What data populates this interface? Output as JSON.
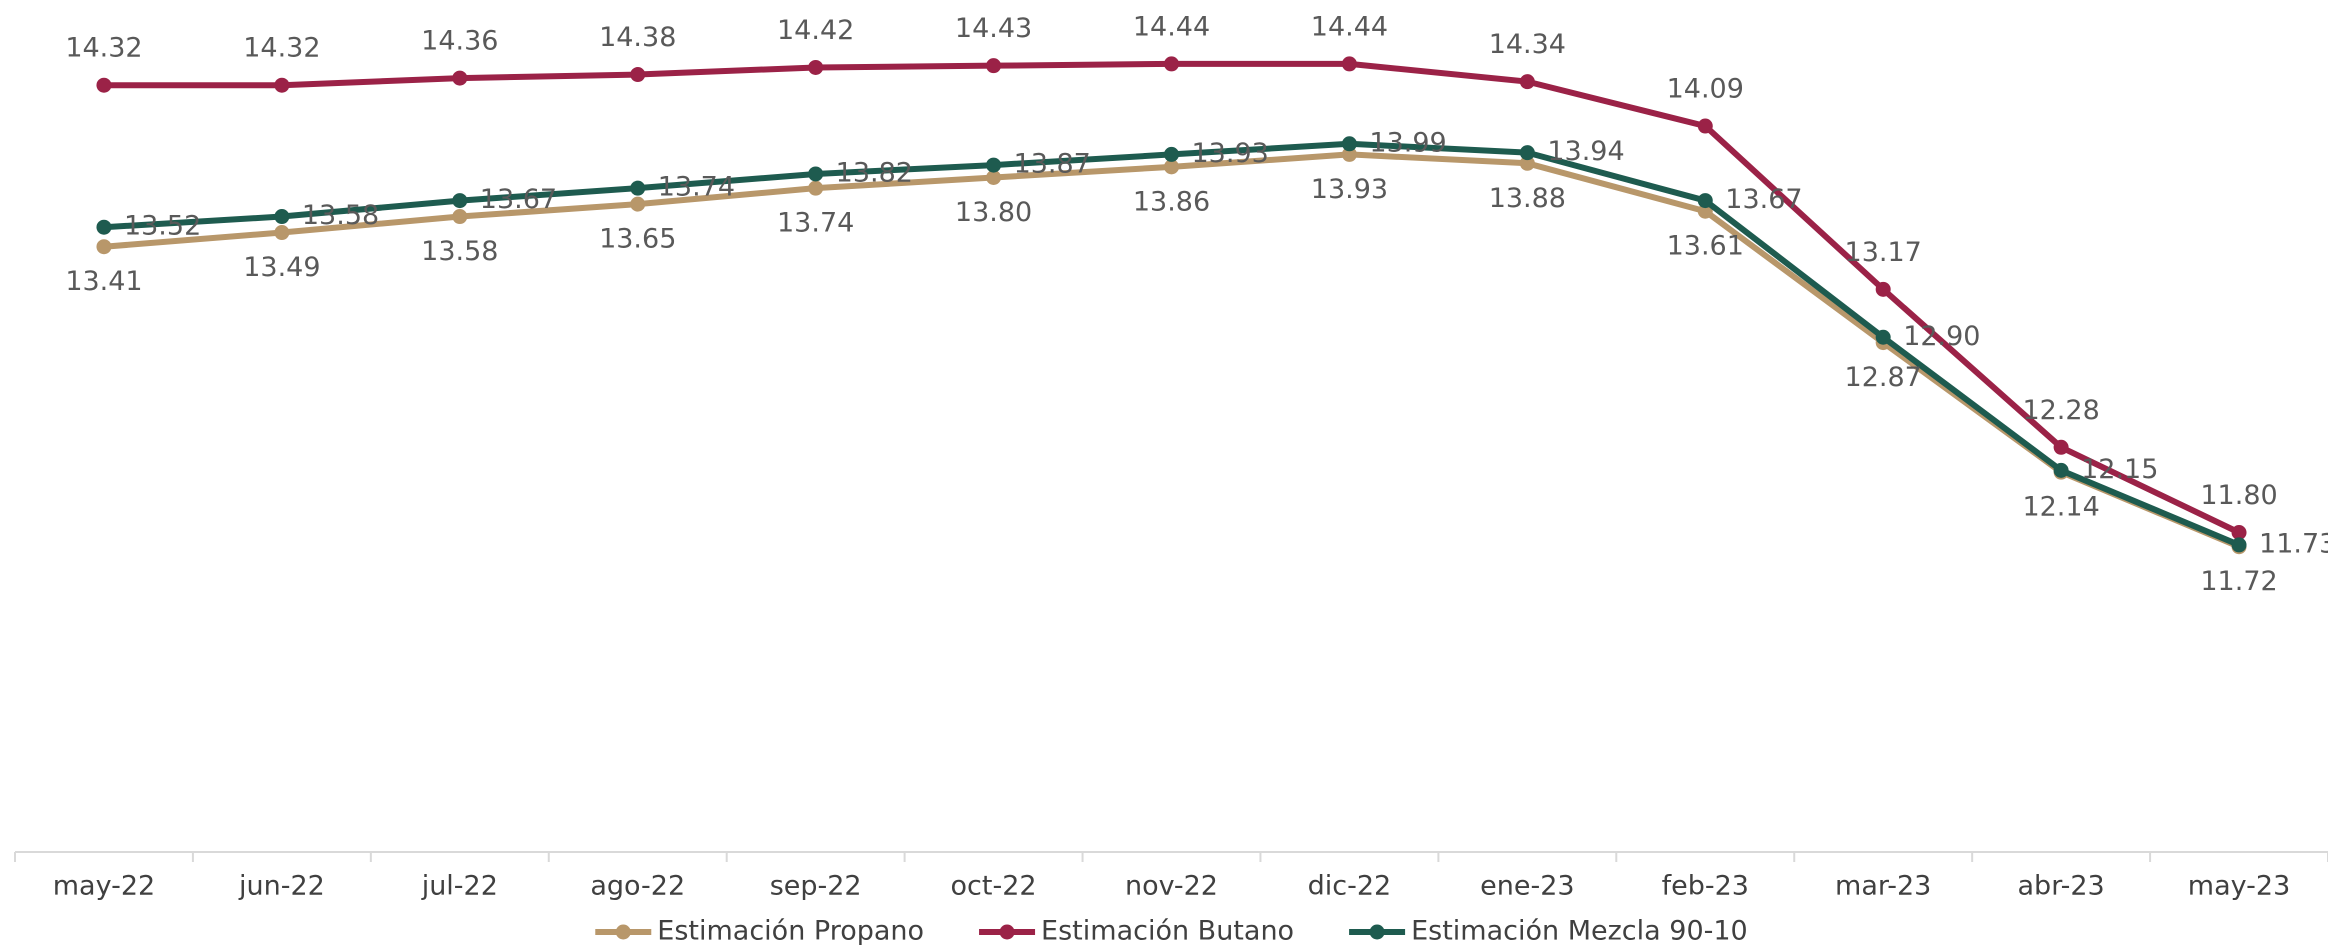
{
  "chart_data": {
    "type": "line",
    "categories": [
      "may-22",
      "jun-22",
      "jul-22",
      "ago-22",
      "sep-22",
      "oct-22",
      "nov-22",
      "dic-22",
      "ene-23",
      "feb-23",
      "mar-23",
      "abr-23",
      "may-23"
    ],
    "ylim": [
      10,
      14.8
    ],
    "series": [
      {
        "name": "Estimación Propano",
        "color": "#b8976a",
        "values": [
          13.41,
          13.49,
          13.58,
          13.65,
          13.74,
          13.8,
          13.86,
          13.93,
          13.88,
          13.61,
          12.87,
          12.14,
          11.72
        ],
        "value_labels": [
          "13.41",
          "13.49",
          "13.58",
          "13.65",
          "13.74",
          "13.80",
          "13.86",
          "13.93",
          "13.88",
          "13.61",
          "12.87",
          "12.14",
          "11.72"
        ]
      },
      {
        "name": "Estimación Butano",
        "color": "#9b2247",
        "values": [
          14.32,
          14.32,
          14.36,
          14.38,
          14.42,
          14.43,
          14.44,
          14.44,
          14.34,
          14.09,
          13.17,
          12.28,
          11.8
        ],
        "value_labels": [
          "14.32",
          "14.32",
          "14.36",
          "14.38",
          "14.42",
          "14.43",
          "14.44",
          "14.44",
          "14.34",
          "14.09",
          "13.17",
          "12.28",
          "11.80"
        ]
      },
      {
        "name": "Estimación Mezcla 90-10",
        "color": "#1e5b4f",
        "values": [
          13.52,
          13.58,
          13.67,
          13.74,
          13.82,
          13.87,
          13.93,
          13.99,
          13.94,
          13.67,
          12.9,
          12.15,
          11.73
        ],
        "value_labels": [
          "13.52",
          "13.58",
          "13.67",
          "13.74",
          "13.82",
          "13.87",
          "13.93",
          "13.99",
          "13.94",
          "13.67",
          "12.90",
          "12.15",
          "11.73"
        ]
      }
    ]
  }
}
